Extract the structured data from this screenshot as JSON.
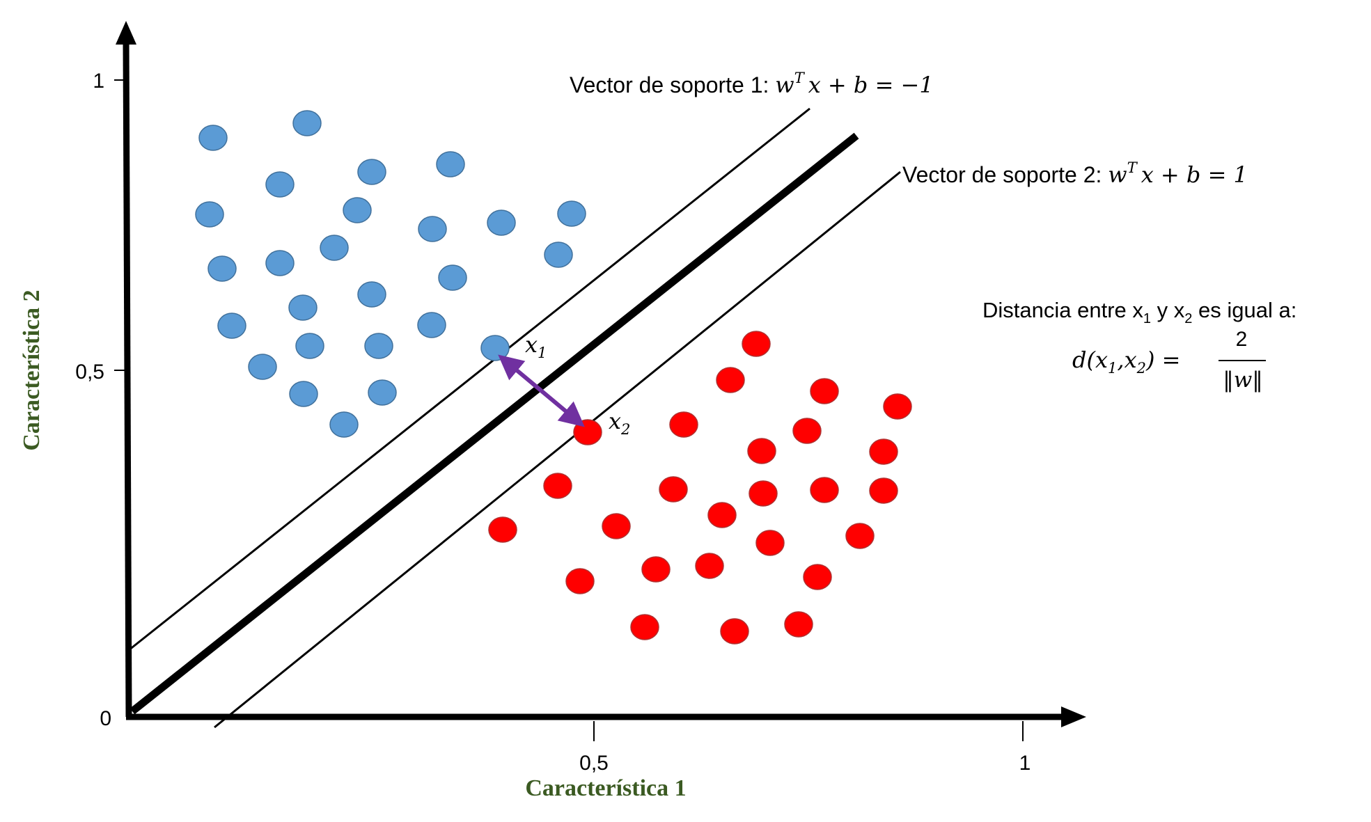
{
  "axes": {
    "x_label": "Característica 1",
    "y_label": "Característica 2",
    "x_ticks": [
      "0,5",
      "1"
    ],
    "y_ticks": [
      "1",
      "0,5",
      "0"
    ],
    "label_color": "#3b5a22"
  },
  "lines": {
    "sv1_label": "Vector de soporte 1: ",
    "sv1_eq_lhs": "w",
    "sv1_eq_sup": "T",
    "sv1_eq_rest": "x + b = −1",
    "sv2_label": "Vector de soporte 2: ",
    "sv2_eq_lhs": "w",
    "sv2_eq_sup": "T",
    "sv2_eq_rest": "x + b = 1"
  },
  "points_labels": {
    "x1_main": "x",
    "x1_sub": "1",
    "x2_main": "x",
    "x2_sub": "2"
  },
  "distance": {
    "intro_a": "Distancia entre x",
    "intro_sub1": "1",
    "intro_b": " y x",
    "intro_sub2": "2",
    "intro_c": " es igual a:",
    "formula_lhs": "d(x",
    "formula_sub1": "1",
    "formula_mid": ",x",
    "formula_sub2": "2",
    "formula_end": ") =",
    "numerator": "2",
    "denominator": "‖w‖"
  },
  "colors": {
    "class_a": "#5b9bd5",
    "class_a_edge": "#41719c",
    "class_b": "#ff0000",
    "class_b_edge": "#b03030",
    "arrow": "#7030a0"
  }
}
